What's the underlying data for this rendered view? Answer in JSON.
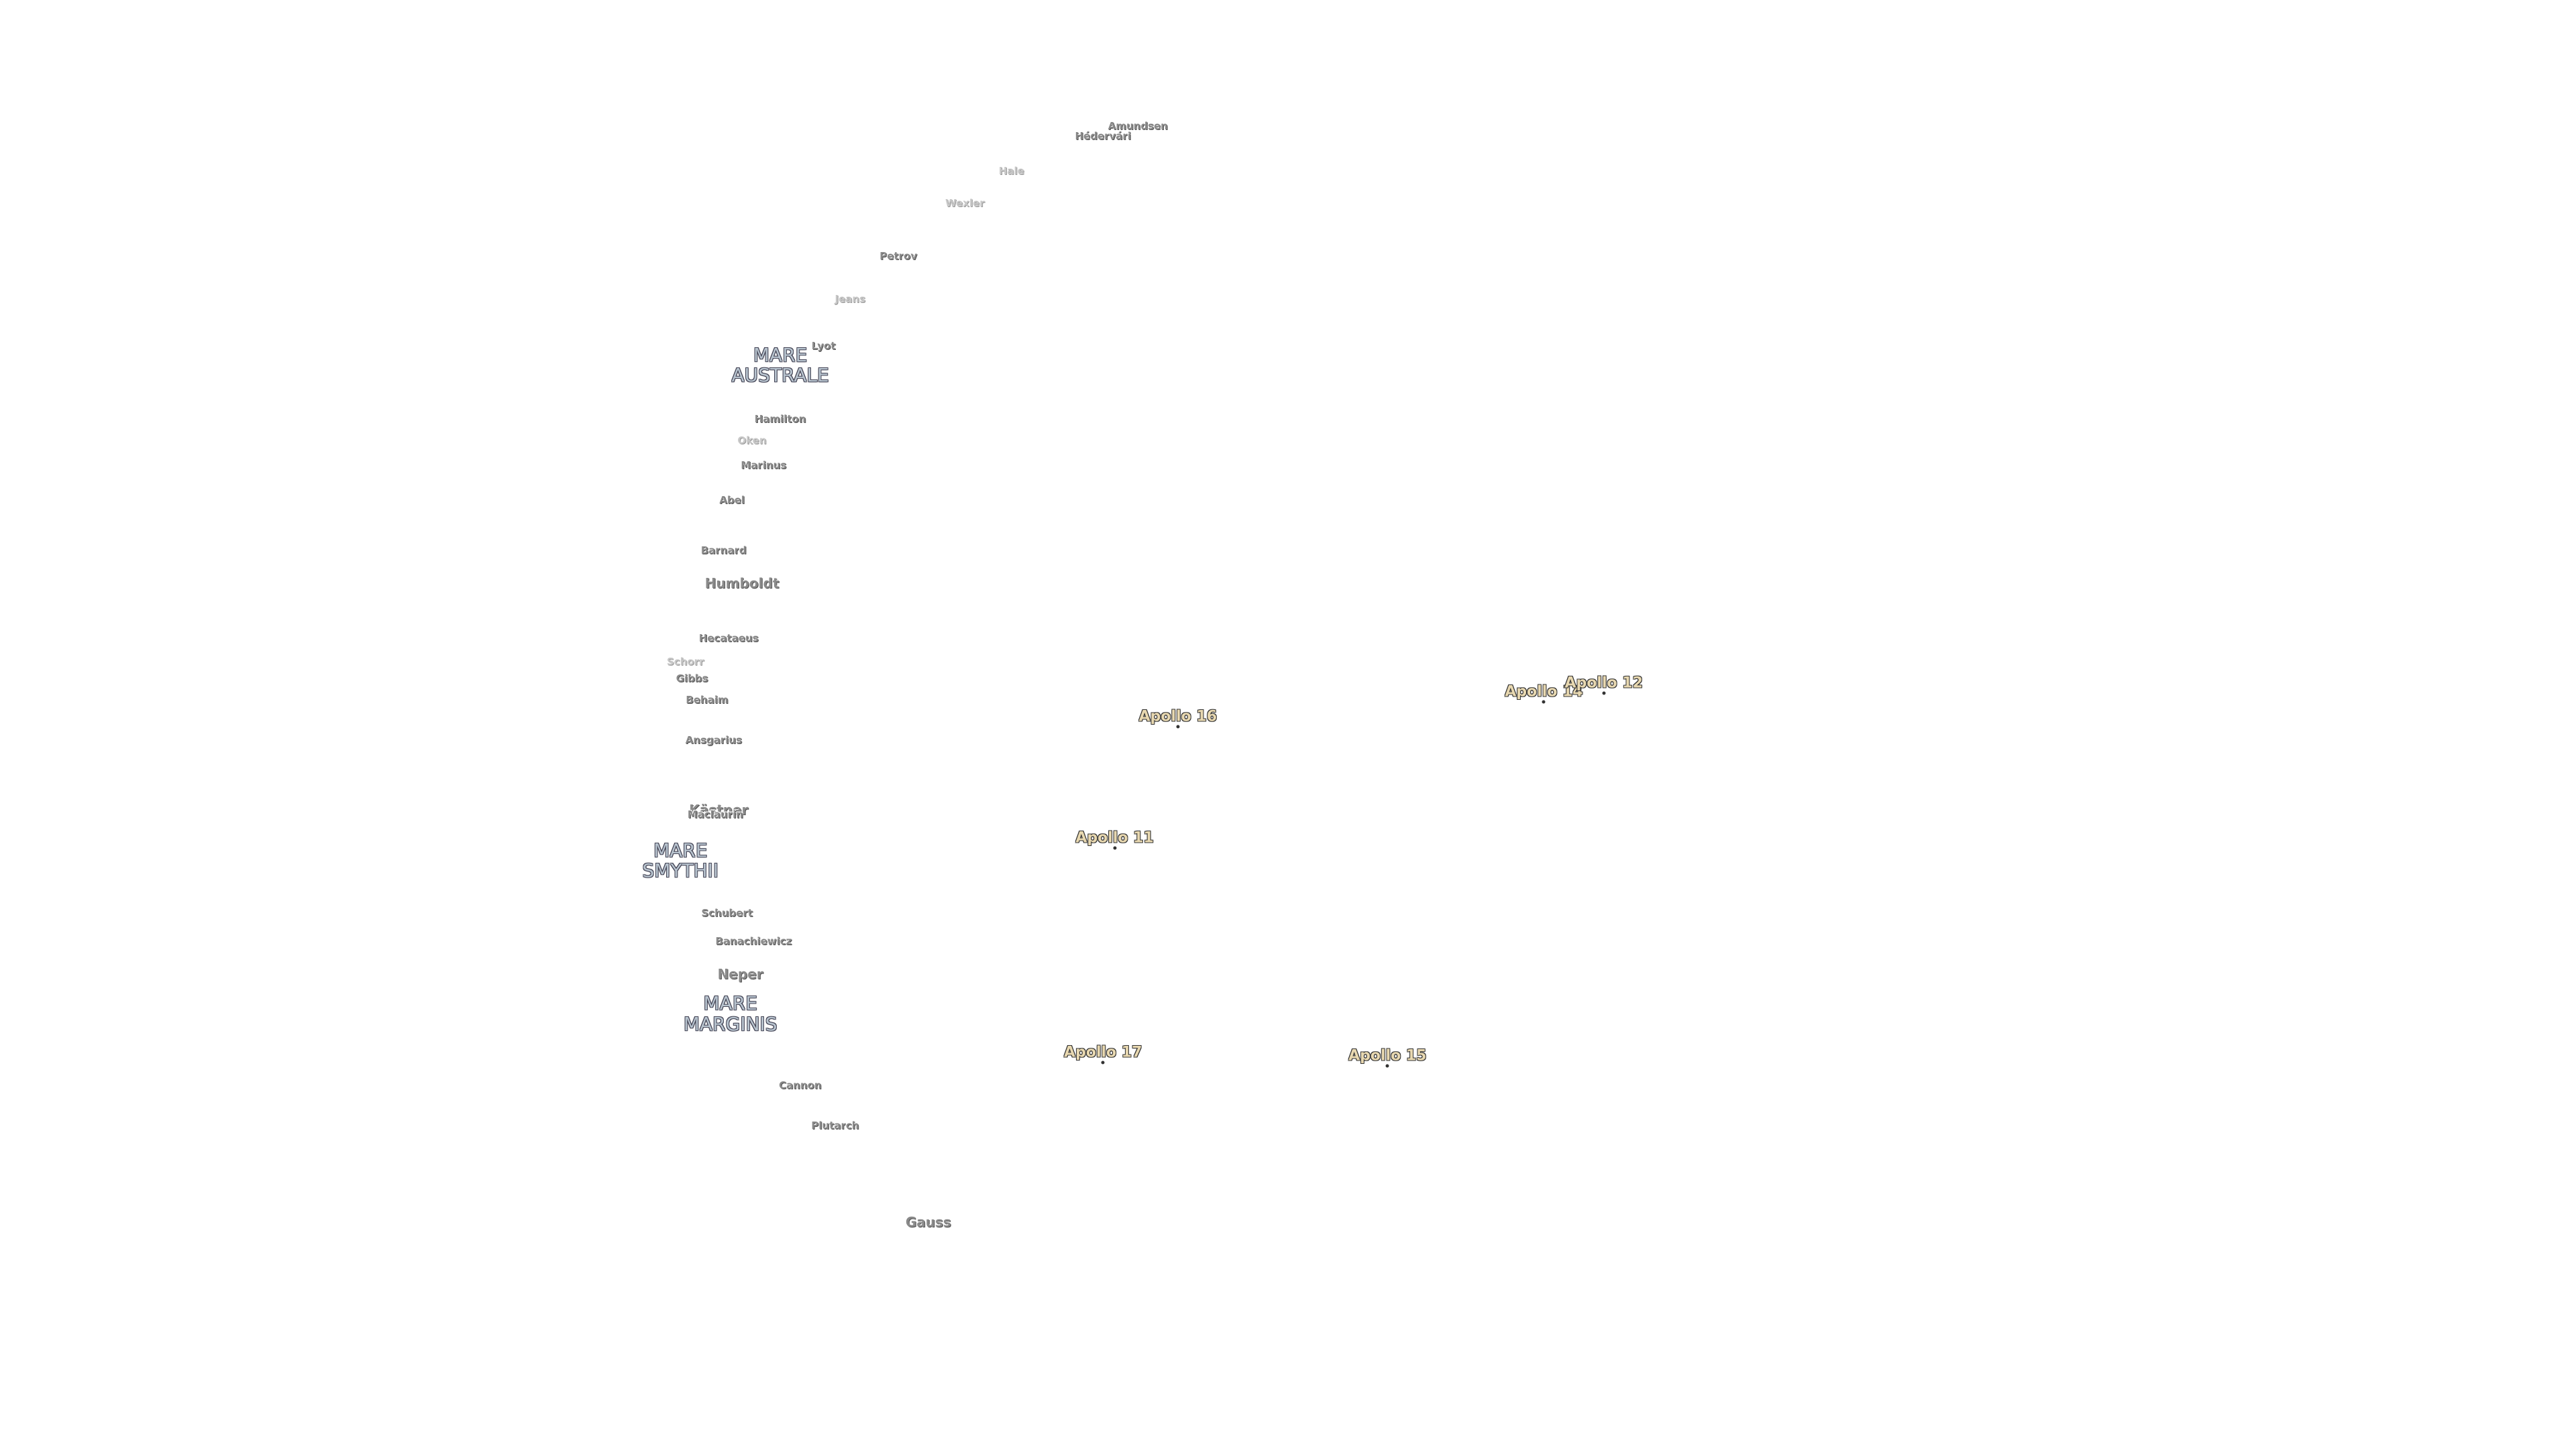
{
  "maria": [
    "MARE AUSTRALE",
    "MARE SMYTHII",
    "MARE MARGINIS"
  ],
  "craters": [
    "Amundsen",
    "Hédervári",
    "Hale",
    "Wexler",
    "Petrov",
    "Jeans",
    "Lyot",
    "Hamilton",
    "Oken",
    "Marinus",
    "Abel",
    "Barnard",
    "Humboldt",
    "Hecataeus",
    "Schorr",
    "Gibbs",
    "Behaim",
    "Ansgarius",
    "Kästner",
    "Maclaurin",
    "Schubert",
    "Banachiewicz",
    "Neper",
    "Cannon",
    "Plutarch",
    "Gauss"
  ],
  "landing_sites": [
    "Apollo 16",
    "Apollo 14",
    "Apollo 12",
    "Apollo 11",
    "Apollo 17",
    "Apollo 15"
  ]
}
